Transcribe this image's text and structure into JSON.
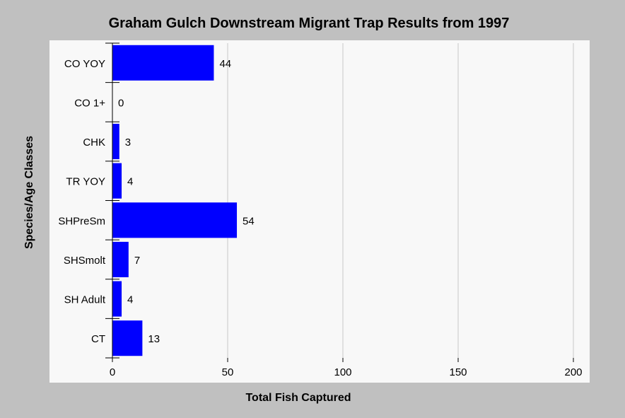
{
  "chart_data": {
    "type": "bar",
    "orientation": "horizontal",
    "title": "Graham Gulch Downstream Migrant Trap Results from 1997",
    "xlabel": "Total Fish Captured",
    "ylabel": "Species/Age Classes",
    "categories": [
      "CO YOY",
      "CO 1+",
      "CHK",
      "TR YOY",
      "SHPreSm",
      "SHSmolt",
      "SH Adult",
      "CT"
    ],
    "values": [
      44,
      0,
      3,
      4,
      54,
      7,
      4,
      13
    ],
    "data_labels": [
      "44",
      "0",
      "3",
      "4",
      "54",
      "7",
      "4",
      "13"
    ],
    "xlim": [
      0,
      200
    ],
    "xticks": [
      0,
      50,
      100,
      150,
      200
    ],
    "xtick_labels": [
      "0",
      "50",
      "100",
      "150",
      "200"
    ],
    "grid": "vertical",
    "legend": "none",
    "colors": {
      "bar": "#0000ff",
      "plot_background": "#f8f8f8",
      "page_background": "#c0c0c0",
      "grid": "#c8c8c8"
    }
  }
}
